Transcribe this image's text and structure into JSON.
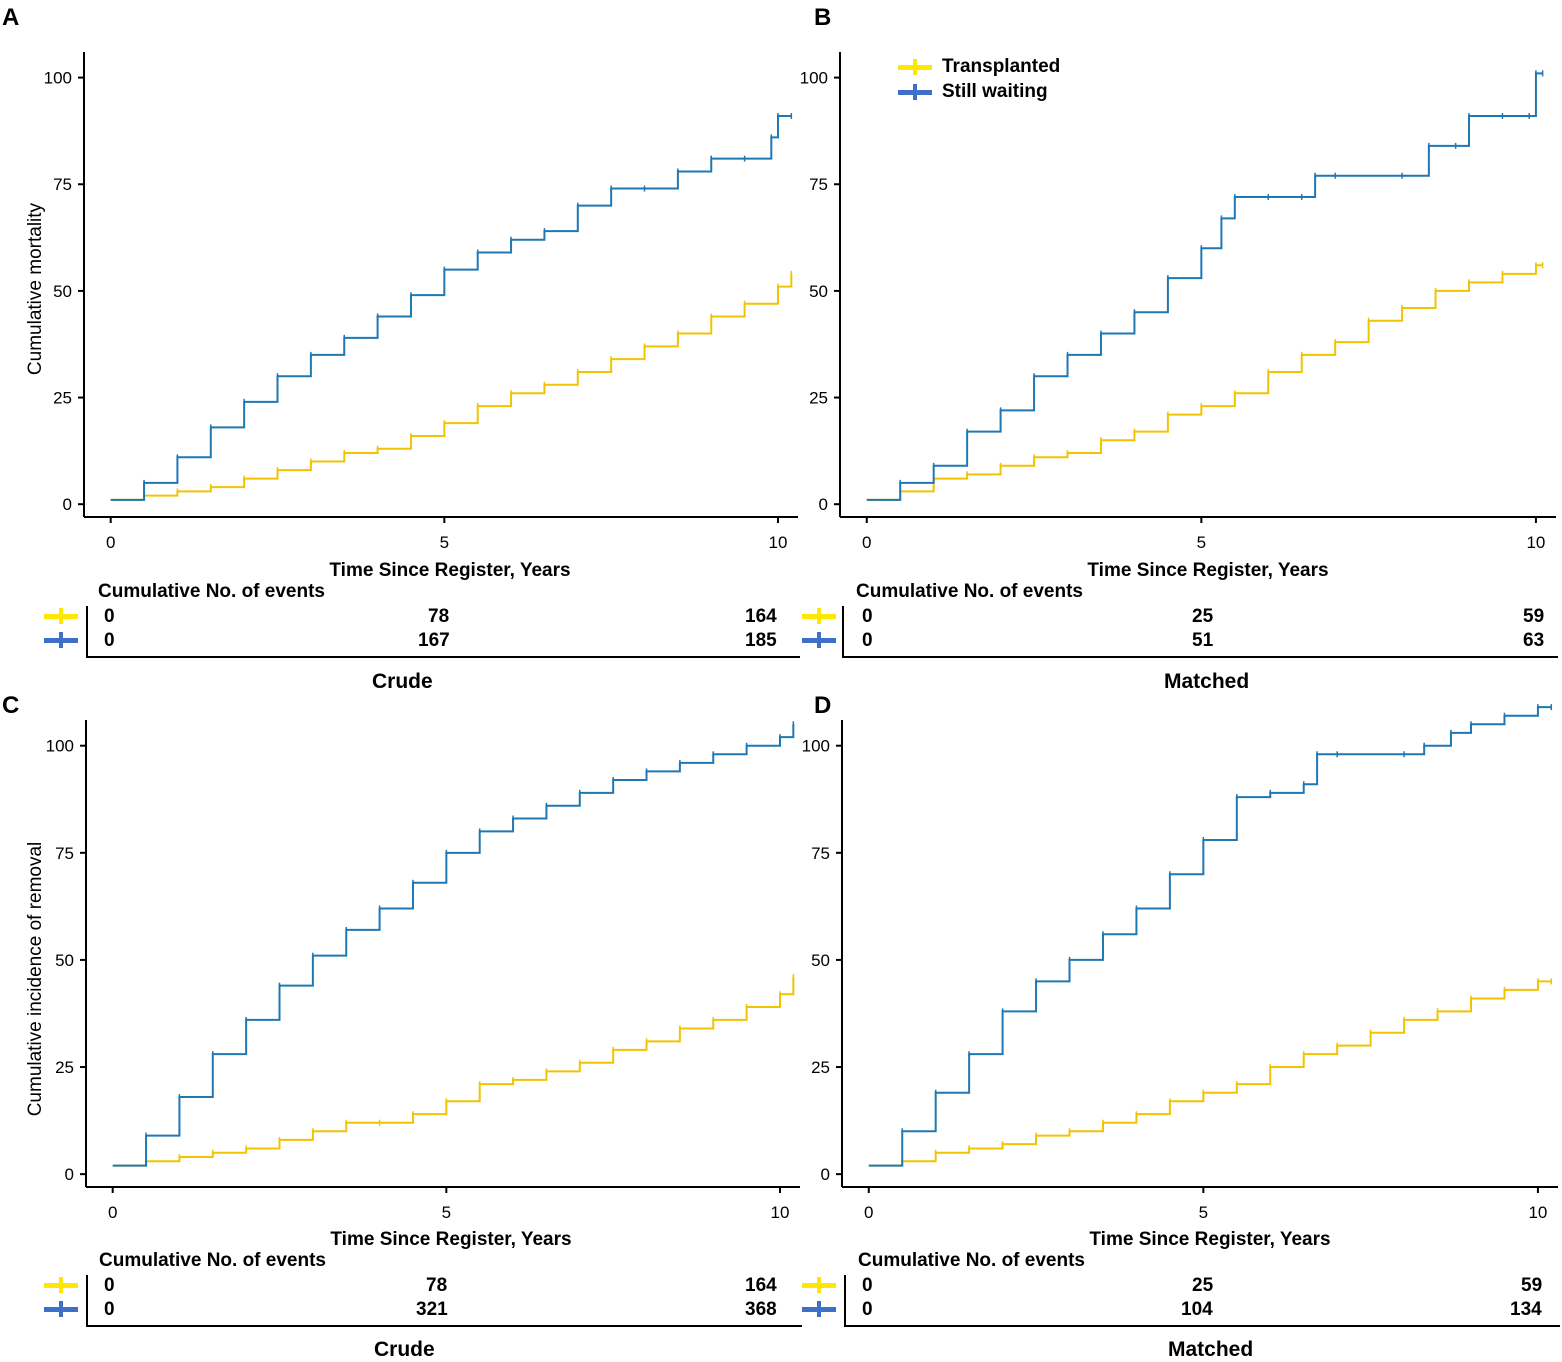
{
  "colors": {
    "transplanted": "#FFE800",
    "still_waiting": "#3F6FC6",
    "line_transplanted": "#F2C300",
    "line_waiting": "#1F77B4"
  },
  "legend": {
    "transplanted": "Transplanted",
    "still_waiting": "Still waiting"
  },
  "chart_data": [
    {
      "panel": "A",
      "type": "line",
      "ylabel": "Cumulative mortality",
      "xlabel": "Time Since Register, Years",
      "xticks": [
        0,
        5,
        10
      ],
      "yticks": [
        0,
        25,
        50,
        75,
        100
      ],
      "xlim": [
        -0.4,
        10.3
      ],
      "ylim": [
        -3,
        106
      ],
      "series": [
        {
          "name": "Transplanted",
          "x": [
            0,
            0.5,
            1,
            1.5,
            2,
            2.5,
            3,
            3.5,
            4,
            4.5,
            5,
            5.5,
            6,
            6.5,
            7,
            7.5,
            8,
            8.5,
            9,
            9.5,
            10,
            10.2
          ],
          "y": [
            1,
            2,
            3,
            4,
            6,
            8,
            10,
            12,
            13,
            16,
            19,
            23,
            26,
            28,
            31,
            34,
            37,
            40,
            44,
            47,
            51,
            54
          ]
        },
        {
          "name": "Still waiting",
          "x": [
            0,
            0.5,
            1,
            1.5,
            2,
            2.5,
            3,
            3.5,
            4,
            4.5,
            5,
            5.5,
            6,
            6.5,
            7,
            7.5,
            8,
            8.5,
            9,
            9.5,
            9.9,
            10,
            10.2
          ],
          "y": [
            1,
            5,
            11,
            18,
            24,
            30,
            35,
            39,
            44,
            49,
            55,
            59,
            62,
            64,
            70,
            74,
            74,
            78,
            81,
            81,
            86,
            91,
            91
          ]
        }
      ],
      "risk_table": {
        "title": "Cumulative No. of events",
        "rows": [
          [
            "0",
            "78",
            "164"
          ],
          [
            "0",
            "167",
            "185"
          ]
        ]
      },
      "caption": "Crude"
    },
    {
      "panel": "B",
      "type": "line",
      "ylabel": "",
      "xlabel": "Time Since Register, Years",
      "xticks": [
        0,
        5,
        10
      ],
      "yticks": [
        0,
        25,
        50,
        75,
        100
      ],
      "xlim": [
        -0.4,
        10.3
      ],
      "ylim": [
        -3,
        106
      ],
      "series": [
        {
          "name": "Transplanted",
          "x": [
            0,
            0.5,
            1,
            1.5,
            2,
            2.5,
            3,
            3.5,
            4,
            4.5,
            5,
            5.5,
            6,
            6.5,
            7,
            7.5,
            8,
            8.5,
            9,
            9.5,
            10,
            10.1
          ],
          "y": [
            1,
            3,
            6,
            7,
            9,
            11,
            12,
            15,
            17,
            21,
            23,
            26,
            31,
            35,
            38,
            43,
            46,
            50,
            52,
            54,
            56,
            56
          ]
        },
        {
          "name": "Still waiting",
          "x": [
            0,
            0.5,
            1,
            1.5,
            2,
            2.5,
            3,
            3.5,
            4,
            4.5,
            5,
            5.3,
            5.5,
            6,
            6.5,
            6.7,
            7,
            8,
            8.4,
            8.8,
            9,
            9.5,
            9.9,
            10,
            10.1
          ],
          "y": [
            1,
            5,
            9,
            17,
            22,
            30,
            35,
            40,
            45,
            53,
            60,
            67,
            72,
            72,
            72,
            77,
            77,
            77,
            84,
            84,
            91,
            91,
            91,
            101,
            101
          ]
        }
      ],
      "risk_table": {
        "title": "Cumulative No. of events",
        "rows": [
          [
            "0",
            "25",
            "59"
          ],
          [
            "0",
            "51",
            "63"
          ]
        ]
      },
      "caption": "Matched"
    },
    {
      "panel": "C",
      "type": "line",
      "ylabel": "Cumulative incidence of removal",
      "xlabel": "Time Since Register, Years",
      "xticks": [
        0,
        5,
        10
      ],
      "yticks": [
        0,
        25,
        50,
        75,
        100
      ],
      "xlim": [
        -0.4,
        10.3
      ],
      "ylim": [
        -3,
        106
      ],
      "series": [
        {
          "name": "Transplanted",
          "x": [
            0,
            0.5,
            1,
            1.5,
            2,
            2.5,
            3,
            3.5,
            4,
            4.5,
            5,
            5.5,
            6,
            6.5,
            7,
            7.5,
            8,
            8.5,
            9,
            9.5,
            10,
            10.2
          ],
          "y": [
            2,
            3,
            4,
            5,
            6,
            8,
            10,
            12,
            12,
            14,
            17,
            21,
            22,
            24,
            26,
            29,
            31,
            34,
            36,
            39,
            42,
            46
          ]
        },
        {
          "name": "Still waiting",
          "x": [
            0,
            0.5,
            1,
            1.5,
            2,
            2.5,
            3,
            3.5,
            4,
            4.5,
            5,
            5.5,
            6,
            6.5,
            7,
            7.5,
            8,
            8.5,
            9,
            9.5,
            10,
            10.2
          ],
          "y": [
            2,
            9,
            18,
            28,
            36,
            44,
            51,
            57,
            62,
            68,
            75,
            80,
            83,
            86,
            89,
            92,
            94,
            96,
            98,
            100,
            102,
            105
          ]
        }
      ],
      "risk_table": {
        "title": "Cumulative No. of events",
        "rows": [
          [
            "0",
            "78",
            "164"
          ],
          [
            "0",
            "321",
            "368"
          ]
        ]
      },
      "caption": "Crude"
    },
    {
      "panel": "D",
      "type": "line",
      "ylabel": "",
      "xlabel": "Time Since Register, Years",
      "xticks": [
        0,
        5,
        10
      ],
      "yticks": [
        0,
        25,
        50,
        75,
        100
      ],
      "xlim": [
        -0.4,
        10.3
      ],
      "ylim": [
        -3,
        106
      ],
      "series": [
        {
          "name": "Transplanted",
          "x": [
            0,
            0.5,
            1,
            1.5,
            2,
            2.5,
            3,
            3.5,
            4,
            4.5,
            5,
            5.5,
            6,
            6.5,
            7,
            7.5,
            8,
            8.5,
            9,
            9.5,
            10,
            10.2
          ],
          "y": [
            2,
            3,
            5,
            6,
            7,
            9,
            10,
            12,
            14,
            17,
            19,
            21,
            25,
            28,
            30,
            33,
            36,
            38,
            41,
            43,
            45,
            45
          ]
        },
        {
          "name": "Still waiting",
          "x": [
            0,
            0.5,
            1,
            1.5,
            2,
            2.5,
            3,
            3.5,
            4,
            4.5,
            5,
            5.5,
            6,
            6.5,
            6.7,
            7,
            8,
            8.3,
            8.7,
            9,
            9.5,
            10,
            10.2
          ],
          "y": [
            2,
            10,
            19,
            28,
            38,
            45,
            50,
            56,
            62,
            70,
            78,
            88,
            89,
            91,
            98,
            98,
            98,
            100,
            103,
            105,
            107,
            109,
            109
          ]
        }
      ],
      "risk_table": {
        "title": "Cumulative No. of events",
        "rows": [
          [
            "0",
            "25",
            "59"
          ],
          [
            "0",
            "104",
            "134"
          ]
        ]
      },
      "caption": "Matched"
    }
  ]
}
